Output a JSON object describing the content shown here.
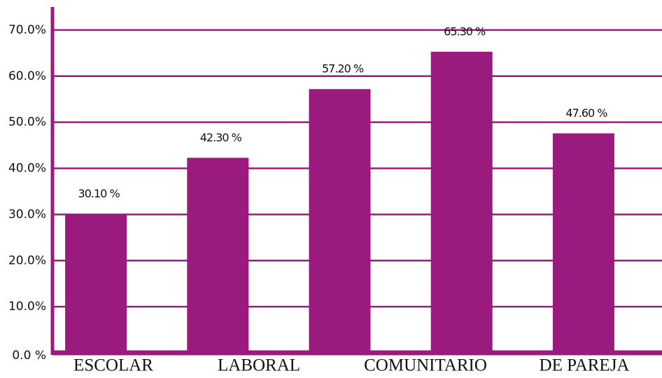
{
  "chart_data": {
    "type": "bar",
    "categories": [
      "ESCOLAR",
      "LABORAL",
      null,
      "COMUNITARIO",
      "DE PAREJA"
    ],
    "values": [
      30.1,
      42.3,
      57.2,
      65.3,
      47.6
    ],
    "value_labels": [
      "30.10 %",
      "42.30 %",
      "57.20 %",
      "65.30 %",
      "47.60 %"
    ],
    "color": "#9b1a7e",
    "ylim": [
      0,
      75
    ],
    "yticks": [
      {
        "value": 0,
        "label": "0.0 %"
      },
      {
        "value": 10,
        "label": "10.0%"
      },
      {
        "value": 20,
        "label": "20.0%"
      },
      {
        "value": 30,
        "label": "30.0%"
      },
      {
        "value": 40,
        "label": "40.0%"
      },
      {
        "value": 50,
        "label": "50.0%"
      },
      {
        "value": 60,
        "label": "60.0%"
      },
      {
        "value": 70,
        "label": "70.0%"
      }
    ],
    "grid": true
  }
}
